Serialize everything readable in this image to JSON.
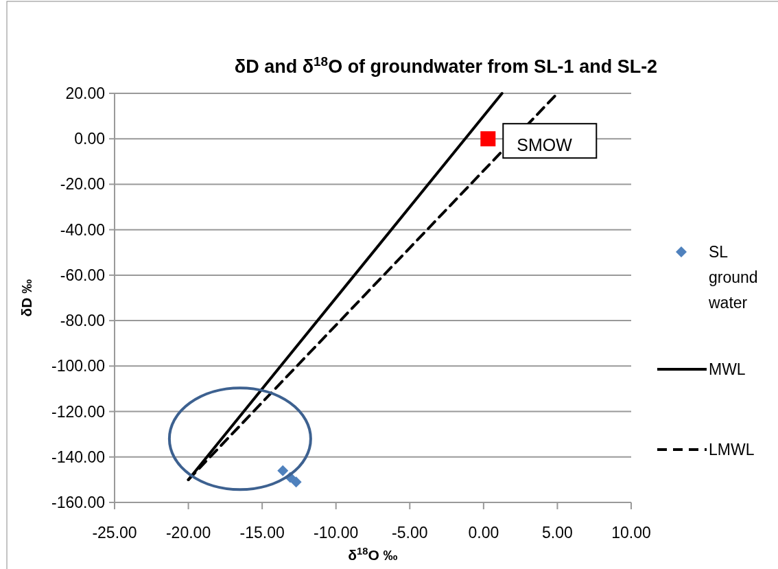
{
  "chart_data": {
    "type": "scatter",
    "title": "δD and δ$^{18}$O of groundwater from SL-1 and SL-2",
    "xlabel": "δ$^{18}$O ‰",
    "ylabel": "δD ‰",
    "xlim": [
      -25,
      10
    ],
    "ylim": [
      -160,
      20
    ],
    "xticks": [
      {
        "value": -25,
        "label": "-25.00"
      },
      {
        "value": -20,
        "label": "-20.00"
      },
      {
        "value": -15,
        "label": "-15.00"
      },
      {
        "value": -10,
        "label": "-10.00"
      },
      {
        "value": -5,
        "label": "-5.00"
      },
      {
        "value": 0,
        "label": "0.00"
      },
      {
        "value": 5,
        "label": "5.00"
      },
      {
        "value": 10,
        "label": "10.00"
      }
    ],
    "yticks": [
      {
        "value": -160,
        "label": "-160.00"
      },
      {
        "value": -140,
        "label": "-140.00"
      },
      {
        "value": -120,
        "label": "-120.00"
      },
      {
        "value": -100,
        "label": "-100.00"
      },
      {
        "value": -80,
        "label": "-80.00"
      },
      {
        "value": -60,
        "label": "-60.00"
      },
      {
        "value": -40,
        "label": "-40.00"
      },
      {
        "value": -20,
        "label": "-20.00"
      },
      {
        "value": 0,
        "label": "0.00"
      },
      {
        "value": 20,
        "label": "20.00"
      }
    ],
    "grid": "y",
    "legend": "right",
    "series": [
      {
        "name": "SL ground water",
        "marker": "diamond",
        "color": "#4f81bd",
        "x": [
          -13.6,
          -13.1,
          -12.7
        ],
        "values": [
          -146,
          -149,
          -151
        ]
      },
      {
        "name": "MWL",
        "type": "line",
        "line_style": "solid",
        "color": "#000000",
        "x": [
          -20,
          1.25
        ],
        "values": [
          -150,
          20
        ]
      },
      {
        "name": "LMWL",
        "type": "line",
        "line_style": "dashed",
        "color": "#000000",
        "x": [
          -20,
          5
        ],
        "values": [
          -150,
          20
        ]
      },
      {
        "marker": "square",
        "color": "#ff0000",
        "x": [
          0.3
        ],
        "values": [
          0
        ]
      }
    ],
    "annotations": [
      {
        "text": "SMOW",
        "x": 0.3,
        "y": 0
      }
    ]
  }
}
